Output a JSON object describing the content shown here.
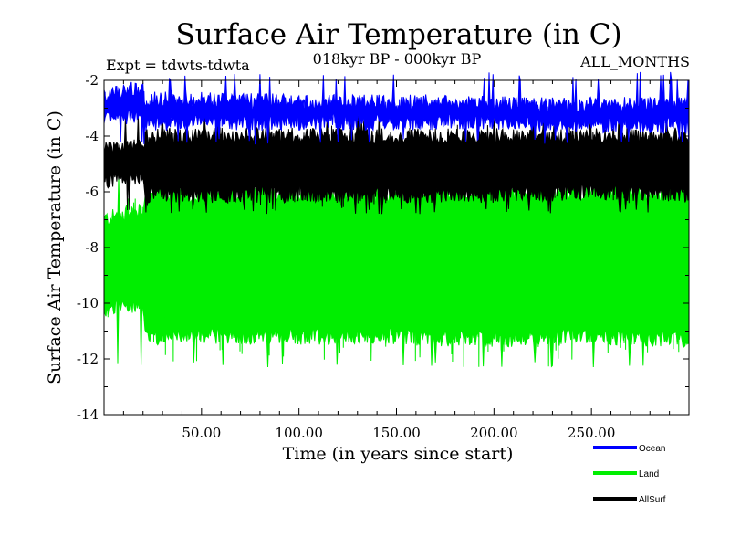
{
  "chart_data": {
    "type": "line",
    "title": "Surface Air Temperature (in C)",
    "subtitle": "018kyr BP - 000kyr BP",
    "experiment_label": "Expt = tdwts-tdwta",
    "months_label": "ALL_MONTHS",
    "xlabel": "Time (in years since start)",
    "ylabel": "Surface Air Temperature (in C)",
    "xlim": [
      0,
      300
    ],
    "ylim": [
      -14,
      -2
    ],
    "x_ticks": [
      50,
      100,
      150,
      200,
      250
    ],
    "x_tick_labels": [
      "50.00",
      "100.00",
      "150.00",
      "200.00",
      "250.00"
    ],
    "y_ticks": [
      -2,
      -4,
      -6,
      -8,
      -10,
      -12,
      -14
    ],
    "y_tick_labels": [
      "-2",
      "-4",
      "-6",
      "-8",
      "-10",
      "-12",
      "-14"
    ],
    "legend_position": "bottom-right",
    "series": [
      {
        "name": "Land",
        "color": "#00ee00",
        "envelope_x": [
          0,
          10,
          20,
          21,
          50,
          100,
          150,
          200,
          250,
          300
        ],
        "envelope_min": [
          -10.3,
          -10.0,
          -10.1,
          -11.2,
          -11.2,
          -11.2,
          -11.2,
          -11.3,
          -11.2,
          -11.3
        ],
        "envelope_max": [
          -7.0,
          -6.8,
          -6.7,
          -6.1,
          -6.1,
          -6.1,
          -6.1,
          -6.0,
          -6.1,
          -6.0
        ],
        "peak_min": -12.1,
        "peak_max": -5.5
      },
      {
        "name": "AllSurf",
        "color": "#000000",
        "envelope_x": [
          0,
          10,
          20,
          21,
          50,
          100,
          150,
          200,
          250,
          300
        ],
        "envelope_min": [
          -5.6,
          -5.5,
          -5.4,
          -6.1,
          -6.1,
          -6.1,
          -6.1,
          -6.1,
          -6.0,
          -6.1
        ],
        "envelope_max": [
          -4.5,
          -4.4,
          -4.3,
          -4.0,
          -4.0,
          -4.0,
          -4.0,
          -4.0,
          -4.0,
          -4.0
        ],
        "peak_min": -6.6,
        "peak_max": -3.4
      },
      {
        "name": "Ocean",
        "color": "#0000ff",
        "envelope_x": [
          0,
          10,
          20,
          21,
          50,
          100,
          150,
          200,
          250,
          300
        ],
        "envelope_min": [
          -3.4,
          -3.3,
          -3.2,
          -3.5,
          -3.5,
          -3.5,
          -3.5,
          -3.5,
          -3.6,
          -3.6
        ],
        "envelope_max": [
          -2.5,
          -2.4,
          -2.3,
          -2.7,
          -2.7,
          -2.8,
          -2.8,
          -2.8,
          -2.9,
          -2.9
        ],
        "peak_min": -4.1,
        "peak_max": -2.0
      }
    ],
    "legend": [
      {
        "label": "Ocean",
        "color": "#0000ff"
      },
      {
        "label": "Land",
        "color": "#00ee00"
      },
      {
        "label": "AllSurf",
        "color": "#000000"
      }
    ]
  }
}
